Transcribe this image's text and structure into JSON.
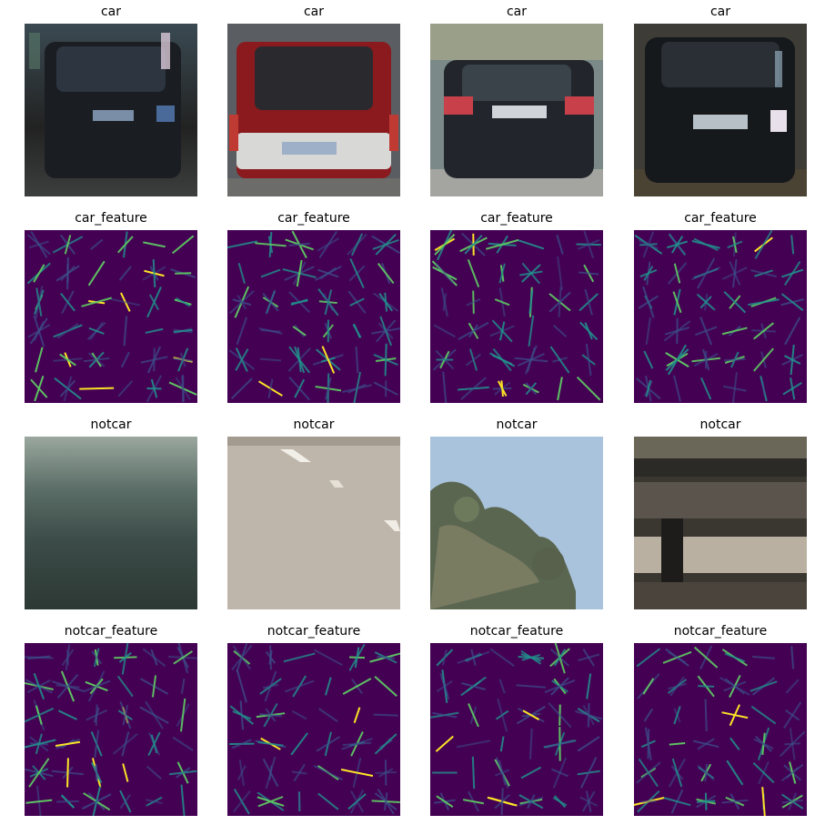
{
  "figure": {
    "rows": [
      {
        "kind": "car_image",
        "titles": [
          "car",
          "car",
          "car",
          "car"
        ]
      },
      {
        "kind": "hog",
        "titles": [
          "car_feature",
          "car_feature",
          "car_feature",
          "car_feature"
        ]
      },
      {
        "kind": "notcar_image",
        "titles": [
          "notcar",
          "notcar",
          "notcar",
          "notcar"
        ]
      },
      {
        "kind": "hog",
        "titles": [
          "notcar_feature",
          "notcar_feature",
          "notcar_feature",
          "notcar_feature"
        ]
      }
    ]
  },
  "colors": {
    "hog_background": "#440154",
    "hog_low": "#3b528b",
    "hog_mid": "#21918c",
    "hog_high": "#5ec962",
    "hog_peak": "#fde725"
  }
}
